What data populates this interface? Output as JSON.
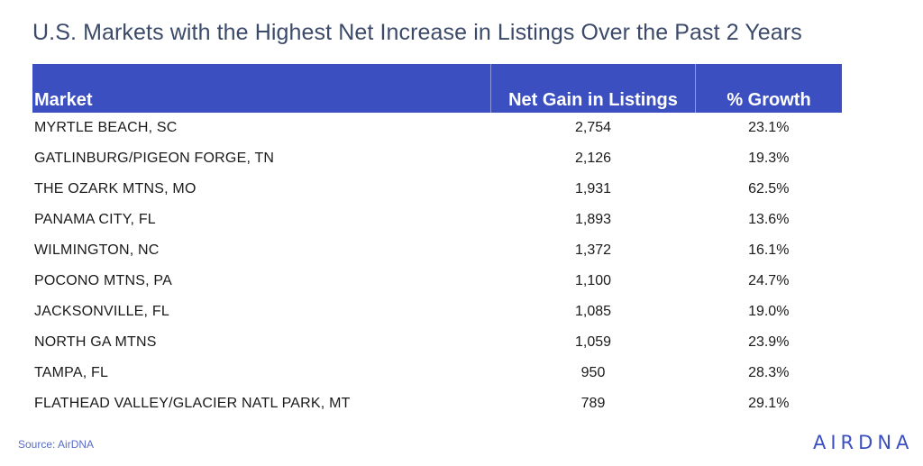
{
  "title": "U.S. Markets with the Highest Net Increase in Listings Over the Past 2 Years",
  "source": "Source: AirDNA",
  "logo_text": "AIRDNA",
  "colors": {
    "header_bg": "#3b4fc0",
    "header_text": "#ffffff",
    "title_text": "#3c4a6a",
    "source_text": "#5a6dc8",
    "logo": "#3b4fc0"
  },
  "chart_data": {
    "type": "table",
    "columns": [
      "Market",
      "Net Gain in Listings",
      "% Growth"
    ],
    "rows": [
      [
        "MYRTLE BEACH, SC",
        "2,754",
        "23.1%"
      ],
      [
        "GATLINBURG/PIGEON FORGE, TN",
        "2,126",
        "19.3%"
      ],
      [
        "THE OZARK MTNS, MO",
        "1,931",
        "62.5%"
      ],
      [
        "PANAMA CITY, FL",
        "1,893",
        "13.6%"
      ],
      [
        "WILMINGTON, NC",
        "1,372",
        "16.1%"
      ],
      [
        "POCONO MTNS, PA",
        "1,100",
        "24.7%"
      ],
      [
        "JACKSONVILLE, FL",
        "1,085",
        "19.0%"
      ],
      [
        "NORTH GA MTNS",
        "1,059",
        "23.9%"
      ],
      [
        "TAMPA, FL",
        "950",
        "28.3%"
      ],
      [
        "FLATHEAD VALLEY/GLACIER NATL PARK, MT",
        "789",
        "29.1%"
      ]
    ]
  }
}
